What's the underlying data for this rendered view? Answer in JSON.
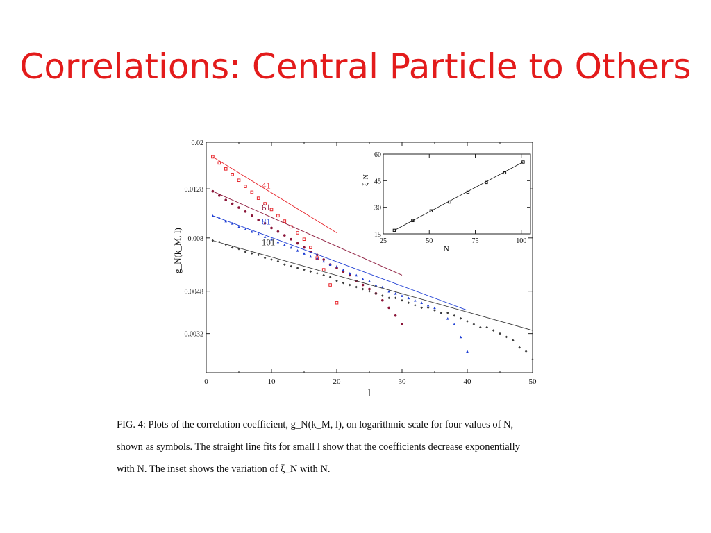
{
  "slide": {
    "title": "Correlations: Central Particle to Others",
    "title_color": "#e31b1b"
  },
  "caption_lines": [
    "FIG. 4: Plots of the correlation coefficient, g_N(k_M, l), on logarithmic scale for four values of N,",
    "shown as symbols. The straight line fits for small l show that the coefficients decrease exponentially",
    "with N. The inset shows the variation of ξ_N with N."
  ],
  "chart_data": [
    {
      "type": "scatter",
      "title": "",
      "xlabel": "l",
      "ylabel": "g_N(k_M, l)",
      "x_range": [
        0,
        50
      ],
      "y_range": [
        0.0022,
        0.02
      ],
      "y_scale": "log",
      "x_ticks": [
        0,
        10,
        20,
        30,
        40,
        50
      ],
      "y_ticks": [
        0.0032,
        0.0048,
        0.008,
        0.0128,
        0.02
      ],
      "y_tick_labels": [
        "0.0032",
        "0.0048",
        "0.008",
        "0.0128",
        "0.02"
      ],
      "grid": false,
      "series": [
        {
          "name": "41",
          "color": "#e8262c",
          "marker": "square",
          "x": [
            1,
            2,
            3,
            4,
            5,
            6,
            7,
            8,
            9,
            10,
            11,
            12,
            13,
            14,
            15,
            16,
            17,
            18,
            19,
            20
          ],
          "y": [
            0.0174,
            0.0164,
            0.0155,
            0.0147,
            0.0139,
            0.0131,
            0.0124,
            0.0117,
            0.0111,
            0.0105,
            0.0099,
            0.0094,
            0.0089,
            0.0084,
            0.0079,
            0.0073,
            0.0066,
            0.0059,
            0.0051,
            0.0043
          ],
          "fit": {
            "x": [
              1,
              20
            ],
            "y": [
              0.0174,
              0.0084
            ]
          }
        },
        {
          "name": "61",
          "color": "#8a1538",
          "marker": "circle",
          "x": [
            1,
            2,
            3,
            4,
            5,
            6,
            7,
            8,
            9,
            10,
            11,
            12,
            13,
            14,
            15,
            16,
            17,
            18,
            19,
            20,
            21,
            22,
            23,
            24,
            25,
            26,
            27,
            28,
            29,
            30
          ],
          "y": [
            0.0125,
            0.012,
            0.0115,
            0.0111,
            0.0107,
            0.0103,
            0.0099,
            0.0095,
            0.0092,
            0.0088,
            0.0085,
            0.0082,
            0.0079,
            0.0076,
            0.0073,
            0.007,
            0.0068,
            0.0065,
            0.0062,
            0.006,
            0.0058,
            0.0056,
            0.0053,
            0.0051,
            0.0049,
            0.0047,
            0.0044,
            0.0041,
            0.0038,
            0.0035
          ],
          "fit": {
            "x": [
              1,
              30
            ],
            "y": [
              0.0125,
              0.0056
            ]
          }
        },
        {
          "name": "81",
          "color": "#1f3fd4",
          "marker": "triangle",
          "x": [
            1,
            2,
            3,
            4,
            5,
            6,
            7,
            8,
            9,
            10,
            11,
            12,
            13,
            14,
            15,
            16,
            17,
            18,
            19,
            20,
            21,
            22,
            23,
            24,
            25,
            26,
            27,
            28,
            29,
            30,
            31,
            32,
            33,
            34,
            35,
            36,
            37,
            38,
            39,
            40
          ],
          "y": [
            0.0099,
            0.0097,
            0.0094,
            0.0092,
            0.0089,
            0.0087,
            0.0085,
            0.0083,
            0.0081,
            0.0079,
            0.0077,
            0.0075,
            0.0073,
            0.0071,
            0.0069,
            0.0067,
            0.0066,
            0.0064,
            0.0062,
            0.0061,
            0.0059,
            0.0057,
            0.0056,
            0.0054,
            0.0053,
            0.0051,
            0.005,
            0.0048,
            0.0047,
            0.0046,
            0.0045,
            0.0044,
            0.0043,
            0.0042,
            0.0041,
            0.0039,
            0.0037,
            0.0035,
            0.0031,
            0.0027
          ],
          "fit": {
            "x": [
              1,
              40
            ],
            "y": [
              0.0099,
              0.004
            ]
          }
        },
        {
          "name": "101",
          "color": "#3a3a3a",
          "marker": "diamond",
          "x": [
            1,
            2,
            3,
            4,
            5,
            6,
            7,
            8,
            9,
            10,
            11,
            12,
            13,
            14,
            15,
            16,
            17,
            18,
            19,
            20,
            21,
            22,
            23,
            24,
            25,
            26,
            27,
            28,
            29,
            30,
            31,
            32,
            33,
            34,
            35,
            36,
            37,
            38,
            39,
            40,
            41,
            42,
            43,
            44,
            45,
            46,
            47,
            48,
            49,
            50
          ],
          "y": [
            0.0078,
            0.0077,
            0.0075,
            0.0073,
            0.0072,
            0.007,
            0.0069,
            0.0068,
            0.0066,
            0.0065,
            0.0064,
            0.0062,
            0.0061,
            0.006,
            0.0059,
            0.0058,
            0.0057,
            0.0056,
            0.0055,
            0.0053,
            0.0052,
            0.0051,
            0.005,
            0.0049,
            0.0048,
            0.0047,
            0.0046,
            0.0045,
            0.0045,
            0.0044,
            0.0043,
            0.0042,
            0.0041,
            0.0041,
            0.004,
            0.0039,
            0.0039,
            0.0038,
            0.0037,
            0.0036,
            0.0035,
            0.0034,
            0.0034,
            0.0033,
            0.0032,
            0.0031,
            0.003,
            0.0028,
            0.0027,
            0.0025
          ],
          "fit": {
            "x": [
              1,
              50
            ],
            "y": [
              0.0078,
              0.0033
            ]
          }
        }
      ]
    },
    {
      "type": "line",
      "title": "",
      "xlabel": "N",
      "ylabel": "ξ_N",
      "x_range": [
        25,
        105
      ],
      "y_range": [
        15,
        60
      ],
      "x_ticks": [
        25,
        50,
        75,
        100
      ],
      "y_ticks": [
        15,
        30,
        45,
        60
      ],
      "grid": false,
      "series": [
        {
          "color": "#111111",
          "marker": "square",
          "x": [
            31,
            41,
            51,
            61,
            71,
            81,
            91,
            101
          ],
          "y": [
            17,
            22.5,
            28,
            33,
            38.5,
            44,
            49.5,
            55.5
          ],
          "fit": {
            "x": [
              31,
              101
            ],
            "y": [
              17,
              55.5
            ]
          }
        }
      ]
    }
  ]
}
